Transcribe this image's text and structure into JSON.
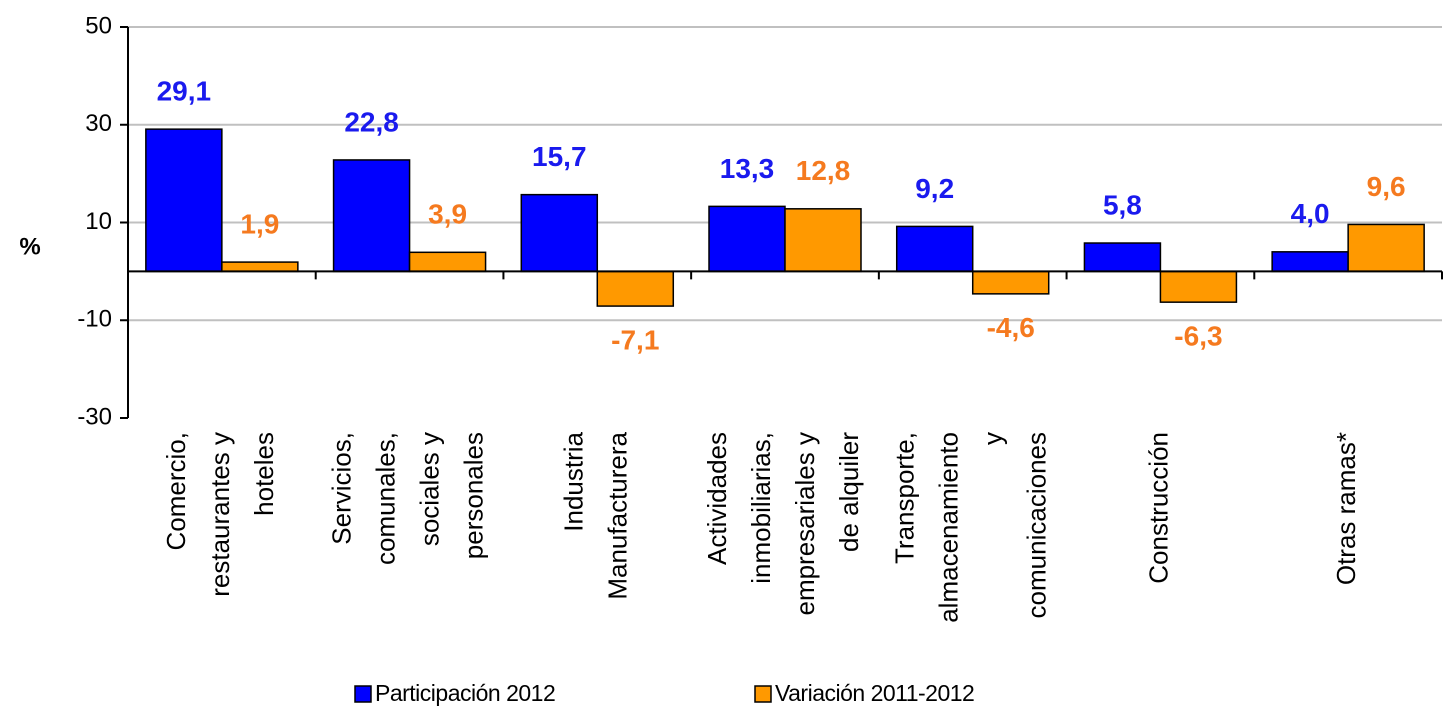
{
  "chart_data": {
    "type": "bar",
    "ylabel": "%",
    "categories": [
      "Comercio,\nrestaurantes y\nhoteles",
      "Servicios,\ncomunales,\nsociales y\npersonales",
      "Industria\nManufacturera",
      "Actividades\ninmobiliarias,\nempresariales y\nde alquiler",
      "Transporte,\nalmacenamiento\ny\ncomunicaciones",
      "Construcción",
      "Otras ramas*"
    ],
    "series": [
      {
        "name": "Participación 2012",
        "color": "#0000ff",
        "label_color": "#1a1aee",
        "values": [
          29.1,
          22.8,
          15.7,
          13.3,
          9.2,
          5.8,
          4.0
        ],
        "value_labels": [
          "29,1",
          "22,8",
          "15,7",
          "13,3",
          "9,2",
          "5,8",
          "4,0"
        ]
      },
      {
        "name": "Variación 2011-2012",
        "color": "#ff9900",
        "label_color": "#f57a1f",
        "values": [
          1.9,
          3.9,
          -7.1,
          12.8,
          -4.6,
          -6.3,
          9.6
        ],
        "value_labels": [
          "1,9",
          "3,9",
          "-7,1",
          "12,8",
          "-4,6",
          "-6,3",
          "9,6"
        ]
      }
    ],
    "ylim": [
      -30,
      50
    ],
    "yticks": [
      -30,
      -10,
      10,
      30,
      50
    ],
    "grid": true,
    "legend": "bottom"
  }
}
